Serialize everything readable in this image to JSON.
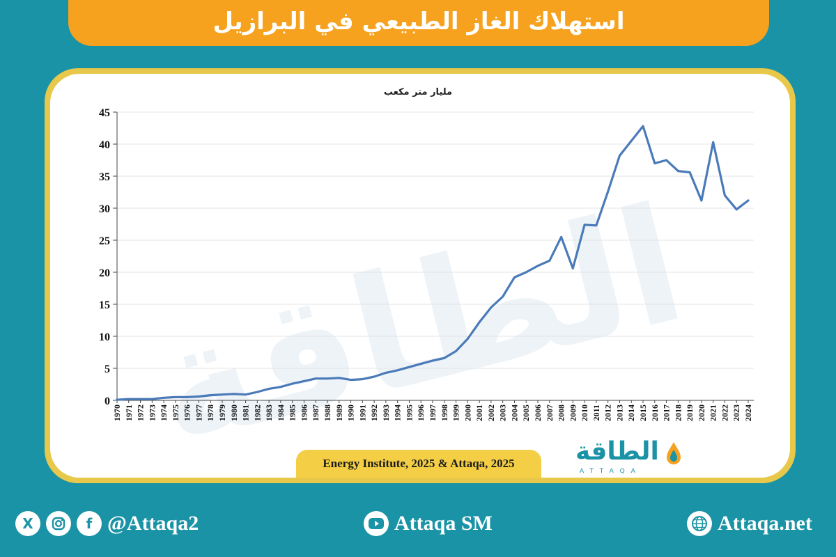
{
  "header": {
    "title": "استهلاك الغاز الطبيعي في البرازيل"
  },
  "colors": {
    "background": "#1b93a6",
    "title_bar": "#f6a21e",
    "card_border": "#e8c84a",
    "line": "#4a7ab8"
  },
  "chart_data": {
    "type": "line",
    "title": "مليار متر مكعب",
    "xlabel": "",
    "ylabel": "",
    "ylim": [
      0,
      45
    ],
    "yticks": [
      0,
      5,
      10,
      15,
      20,
      25,
      30,
      35,
      40,
      45
    ],
    "grid": true,
    "x": [
      "1970",
      "1971",
      "1972",
      "1973",
      "1974",
      "1975",
      "1976",
      "1977",
      "1978",
      "1979",
      "1980",
      "1981",
      "1982",
      "1983",
      "1984",
      "1985",
      "1986",
      "1987",
      "1988",
      "1989",
      "1990",
      "1991",
      "1992",
      "1993",
      "1994",
      "1995",
      "1996",
      "1997",
      "1998",
      "1999",
      "2000",
      "2001",
      "2002",
      "2003",
      "2004",
      "2005",
      "2006",
      "2007",
      "2008",
      "2009",
      "2010",
      "2011",
      "2012",
      "2013",
      "2014",
      "2015",
      "2016",
      "2017",
      "2018",
      "2019",
      "2020",
      "2021",
      "2022",
      "2023",
      "2024"
    ],
    "series": [
      {
        "values": [
          0.1,
          0.2,
          0.2,
          0.2,
          0.4,
          0.5,
          0.5,
          0.6,
          0.8,
          0.9,
          1.0,
          0.9,
          1.3,
          1.8,
          2.1,
          2.6,
          3.0,
          3.4,
          3.4,
          3.5,
          3.2,
          3.3,
          3.7,
          4.3,
          4.7,
          5.2,
          5.7,
          6.2,
          6.6,
          7.7,
          9.6,
          12.2,
          14.5,
          16.2,
          19.2,
          20.0,
          21.0,
          21.8,
          25.5,
          20.6,
          27.4,
          27.3,
          32.6,
          38.2,
          40.5,
          42.8,
          37.0,
          37.5,
          35.8,
          35.6,
          31.2,
          40.3,
          32.0,
          29.8,
          31.2
        ]
      }
    ],
    "source": "Energy Institute, 2025 & Attaqa, 2025"
  },
  "logo": {
    "arabic": "الطاقة",
    "latin": "ATTAQA"
  },
  "footer": {
    "social_handle": "@Attaqa2",
    "youtube": "Attaqa SM",
    "website": "Attaqa.net"
  }
}
